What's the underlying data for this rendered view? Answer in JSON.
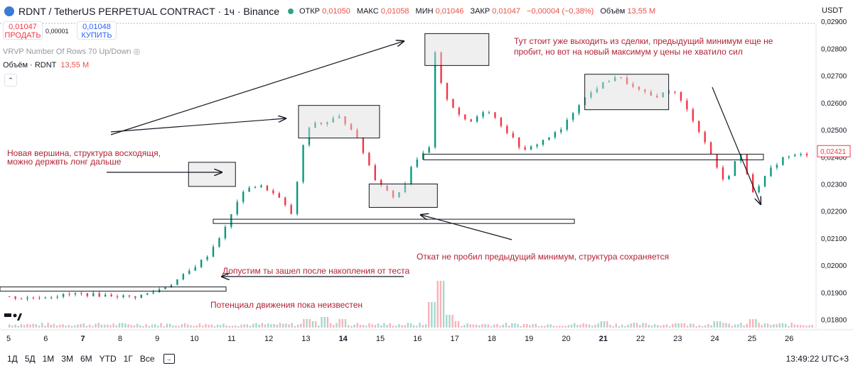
{
  "header": {
    "symbol": "RDNT / TetherUS PERPETUAL CONTRACT · 1ч · Binance",
    "open_label": "ОТКР",
    "open": "0,01050",
    "high_label": "МАКС",
    "high": "0,01058",
    "low_label": "МИН",
    "low": "0,01046",
    "close_label": "ЗАКР",
    "close": "0,01047",
    "change": "−0,00004 (−0,38%)",
    "volume_label": "Объём",
    "volume": "13,55 M",
    "currency": "USDT"
  },
  "trade": {
    "sell_price": "0,01047",
    "sell_label": "ПРОДАТЬ",
    "spread": "0,00001",
    "buy_price": "0,01048",
    "buy_label": "КУПИТЬ"
  },
  "indicators": {
    "vrvp": "VRVP Number Of Rows 70 Up/Down",
    "volume_title": "Объём · RDNT",
    "volume_value": "13,55 M"
  },
  "bottom": {
    "timeframes": [
      "1Д",
      "5Д",
      "1М",
      "3М",
      "6М",
      "YTD",
      "1Г",
      "Все"
    ],
    "clock": "13:49:22 UTC+3"
  },
  "colors": {
    "up": "#089981",
    "down": "#f23645",
    "annotation": "#b22234",
    "box_fill": "#f0f0f0"
  },
  "chart_data": {
    "type": "candlestick",
    "x_labels": [
      "5",
      "6",
      "7",
      "8",
      "9",
      "10",
      "11",
      "12",
      "13",
      "14",
      "15",
      "16",
      "17",
      "18",
      "19",
      "20",
      "21",
      "22",
      "23",
      "24",
      "25",
      "26"
    ],
    "y_ticks": [
      "0,01800",
      "0,01900",
      "0,02000",
      "0,02100",
      "0,02200",
      "0,02300",
      "0,02400",
      "0,02500",
      "0,02600",
      "0,02700",
      "0,02800",
      "0,02900"
    ],
    "ylim": [
      0.0177,
      0.0289
    ],
    "last_price": "0,02421",
    "path": [
      [
        5,
        0.01885
      ],
      [
        5.5,
        0.01878
      ],
      [
        6,
        0.01882
      ],
      [
        6.5,
        0.01888
      ],
      [
        7,
        0.01895
      ],
      [
        7.5,
        0.0189
      ],
      [
        8,
        0.01888
      ],
      [
        8.5,
        0.01882
      ],
      [
        9,
        0.019
      ],
      [
        9.5,
        0.0193
      ],
      [
        10,
        0.01978
      ],
      [
        10.5,
        0.02038
      ],
      [
        11,
        0.02145
      ],
      [
        11.3,
        0.0224
      ],
      [
        11.6,
        0.0229
      ],
      [
        12,
        0.0229
      ],
      [
        12.4,
        0.0225
      ],
      [
        12.8,
        0.0218
      ],
      [
        13,
        0.0242
      ],
      [
        13.3,
        0.0253
      ],
      [
        13.6,
        0.0252
      ],
      [
        14,
        0.0255
      ],
      [
        14.4,
        0.025
      ],
      [
        14.8,
        0.0238
      ],
      [
        15,
        0.0232
      ],
      [
        15.5,
        0.0225
      ],
      [
        15.8,
        0.023
      ],
      [
        16,
        0.0238
      ],
      [
        16.3,
        0.0241
      ],
      [
        16.5,
        0.0244
      ],
      [
        16.6,
        0.0279
      ],
      [
        16.8,
        0.0265
      ],
      [
        17,
        0.026
      ],
      [
        17.5,
        0.0252
      ],
      [
        18,
        0.0258
      ],
      [
        18.5,
        0.025
      ],
      [
        19,
        0.0242
      ],
      [
        19.5,
        0.0246
      ],
      [
        20,
        0.025
      ],
      [
        20.5,
        0.026
      ],
      [
        21,
        0.0266
      ],
      [
        21.5,
        0.027
      ],
      [
        22,
        0.0265
      ],
      [
        22.5,
        0.0262
      ],
      [
        23,
        0.0265
      ],
      [
        23.5,
        0.0255
      ],
      [
        24,
        0.0242
      ],
      [
        24.4,
        0.023
      ],
      [
        24.8,
        0.0242
      ],
      [
        25.2,
        0.0226
      ],
      [
        25.6,
        0.0235
      ],
      [
        26,
        0.024
      ],
      [
        26.6,
        0.0241
      ]
    ],
    "volume": [
      [
        13,
        4
      ],
      [
        13.2,
        3
      ],
      [
        13.5,
        5
      ],
      [
        14,
        4
      ],
      [
        16.6,
        22
      ],
      [
        16.4,
        12
      ],
      [
        16.8,
        6
      ],
      [
        17,
        3
      ],
      [
        21,
        3
      ],
      [
        23,
        2
      ],
      [
        24,
        3
      ],
      [
        25,
        4
      ]
    ],
    "annotations": [
      {
        "text": "Тут стоит уже выходить из сделки, предыдущий минимум еще не",
        "x": 16.3,
        "y": 0.0281
      },
      {
        "text": "пробит, но вот на новый максимум у цены не хватило сил",
        "x": 16.3,
        "y": 0.02795
      },
      {
        "text": "Новая вершина, структура восходящя,",
        "x": 5.0,
        "y": 0.02455
      },
      {
        "text": "можно держвть лонг дальше",
        "x": 5.0,
        "y": 0.0244
      },
      {
        "text": "Откат не пробил предыдущий минимум, структура сохраняется",
        "x": 15.9,
        "y": 0.02045
      },
      {
        "text": "Допустим ты зашел после накопления от теста",
        "x": 10.8,
        "y": 0.01965
      },
      {
        "text": "Потенциал движения пока неизвестен",
        "x": 10.2,
        "y": 0.0185
      }
    ]
  }
}
